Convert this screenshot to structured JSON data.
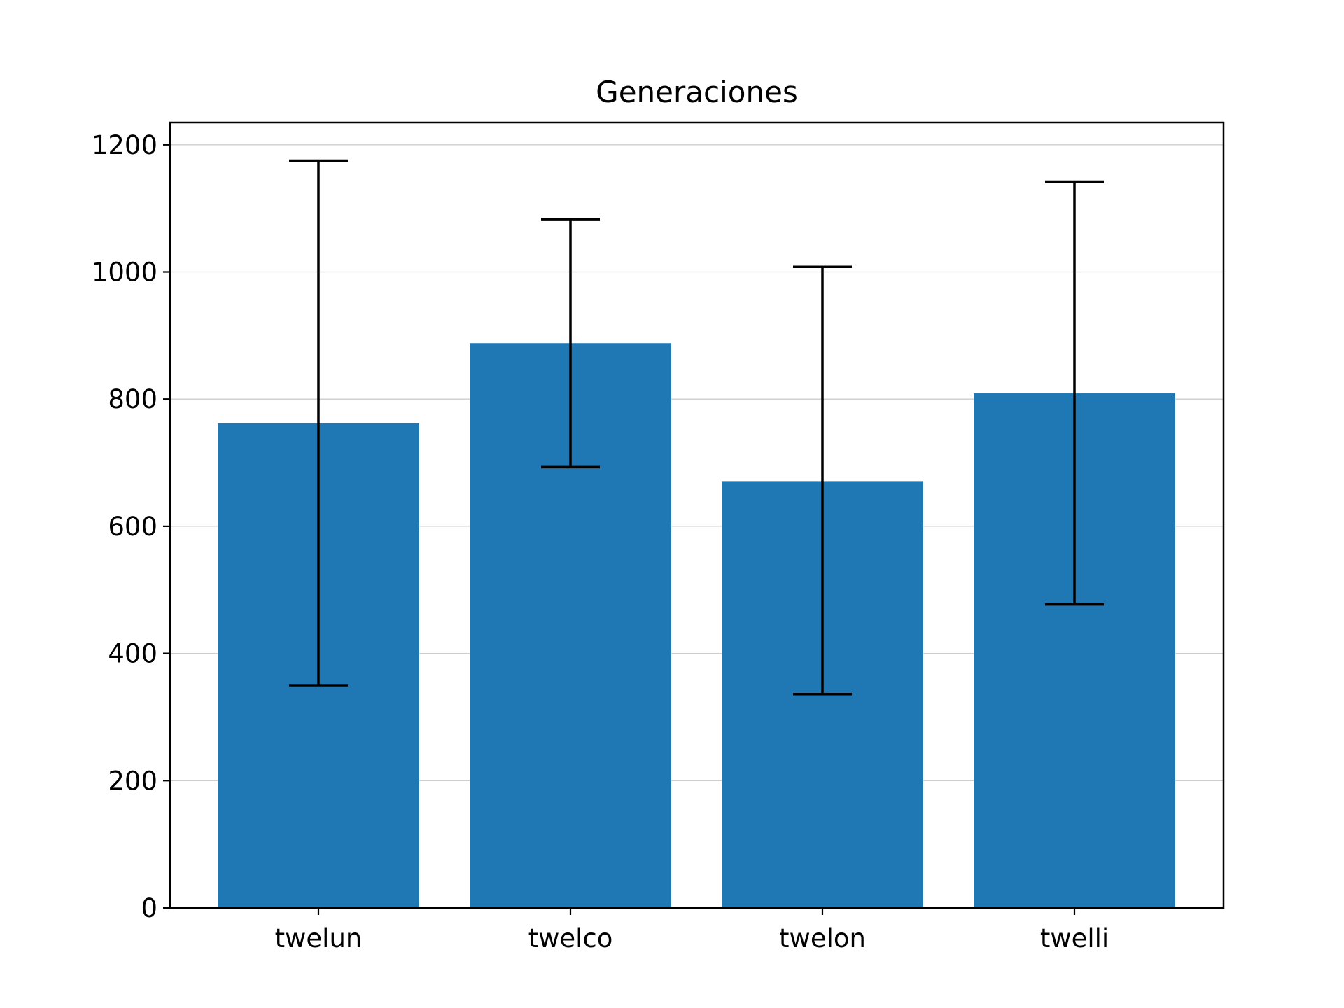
{
  "chart_data": {
    "type": "bar",
    "title": "Generaciones",
    "xlabel": "",
    "ylabel": "",
    "categories": [
      "twelun",
      "twelco",
      "twelon",
      "twelli"
    ],
    "values": [
      762,
      888,
      671,
      809
    ],
    "error_low": [
      350,
      693,
      336,
      477
    ],
    "error_high": [
      1175,
      1083,
      1008,
      1142
    ],
    "ylim": [
      0,
      1235
    ],
    "yticks": [
      0,
      200,
      400,
      600,
      800,
      1000,
      1200
    ],
    "grid": "horizontal",
    "legend": "none",
    "colors": {
      "bar": "#1f77b4",
      "error_bar": "#000000",
      "grid": "#cccccc",
      "axis": "#000000"
    }
  }
}
